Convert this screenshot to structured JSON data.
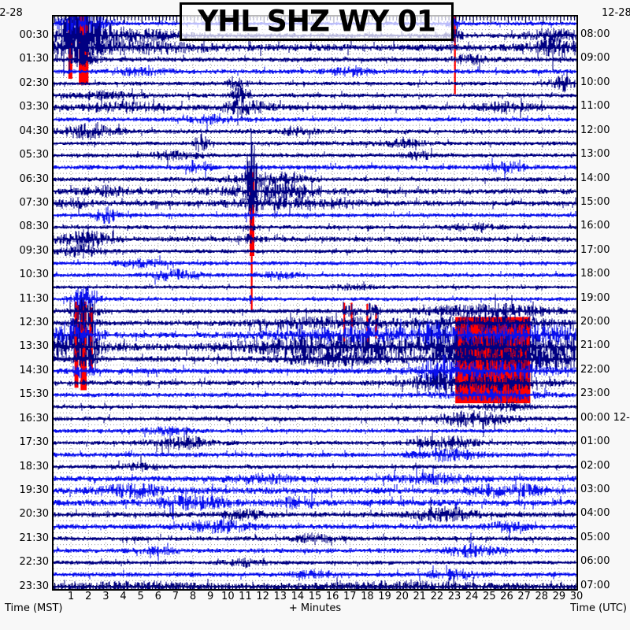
{
  "title": "YHL SHZ WY 01",
  "dates": {
    "top_left": "12-28",
    "top_right": "12-28"
  },
  "axes": {
    "left_label": "Time (MST)",
    "right_label": "Time (UTC)",
    "bottom_label": "+ Minutes",
    "left_ticks": [
      "00:30",
      "01:30",
      "02:30",
      "03:30",
      "04:30",
      "05:30",
      "06:30",
      "07:30",
      "08:30",
      "09:30",
      "10:30",
      "11:30",
      "12:30",
      "13:30",
      "14:30",
      "15:30",
      "16:30",
      "17:30",
      "18:30",
      "19:30",
      "20:30",
      "21:30",
      "22:30",
      "23:30"
    ],
    "right_ticks": [
      "08:00",
      "09:00",
      "10:00",
      "11:00",
      "12:00",
      "13:00",
      "14:00",
      "15:00",
      "16:00",
      "17:00",
      "18:00",
      "19:00",
      "20:00",
      "21:00",
      "22:00",
      "23:00",
      "00:00 12-29",
      "01:00",
      "02:00",
      "03:00",
      "04:00",
      "05:00",
      "06:00",
      "07:00"
    ],
    "minute_ticks": [
      "1",
      "2",
      "3",
      "4",
      "5",
      "6",
      "7",
      "8",
      "9",
      "10",
      "11",
      "12",
      "13",
      "14",
      "15",
      "16",
      "17",
      "18",
      "19",
      "20",
      "21",
      "22",
      "23",
      "24",
      "25",
      "26",
      "27",
      "28",
      "29",
      "30"
    ]
  },
  "colors": {
    "dark_trace": "#000082",
    "bright_trace": "#0a10ee",
    "clip": "#ff0000",
    "grid": "#9a9a9a",
    "comb": "#0a0a60",
    "frame": "#000000",
    "plot_bg": "#ffffff",
    "page_bg": "#f8f8f8"
  },
  "chart_data": {
    "type": "heatmap",
    "subtype": "helicorder-seismogram",
    "station": "YHL",
    "channel": "SHZ",
    "network_region": "WY",
    "minutes_per_line": 30,
    "lines": 48,
    "start_local_date": "12-28",
    "utc_rollover_label": "00:00 12-29",
    "grid": "dotted, 1-minute vertical lines and per-line horizontal lines",
    "rows": [
      {
        "t": "00:00",
        "c": "b",
        "a": 2.0,
        "ev": [
          [
            1.6,
            0.8,
            20
          ],
          [
            23,
            0.3,
            6
          ]
        ]
      },
      {
        "t": "00:30",
        "c": "d",
        "a": 2.5,
        "ev": [
          [
            1.5,
            0.9,
            26
          ],
          [
            3.5,
            2.5,
            9
          ],
          [
            23,
            0.3,
            8
          ],
          [
            28.8,
            1.2,
            7
          ]
        ]
      },
      {
        "t": "01:00",
        "c": "d",
        "a": 4.0,
        "ev": [
          [
            1.4,
            0.8,
            14
          ],
          [
            4,
            3,
            6
          ],
          [
            29,
            1,
            9
          ]
        ]
      },
      {
        "t": "01:30",
        "c": "d",
        "a": 2.5,
        "ev": [
          [
            1.8,
            0.5,
            7
          ],
          [
            24,
            0.8,
            5
          ]
        ]
      },
      {
        "t": "02:00",
        "c": "b",
        "a": 2.5,
        "ev": [
          [
            5,
            1,
            4
          ],
          [
            17,
            0.8,
            5
          ]
        ]
      },
      {
        "t": "02:30",
        "c": "d",
        "a": 2.0,
        "ev": [
          [
            10.5,
            0.4,
            7
          ],
          [
            29.3,
            0.5,
            9
          ]
        ]
      },
      {
        "t": "03:00",
        "c": "d",
        "a": 2.2,
        "ev": [
          [
            10.7,
            0.3,
            12
          ],
          [
            3,
            1.5,
            4
          ]
        ]
      },
      {
        "t": "03:30",
        "c": "d",
        "a": 3.0,
        "ev": [
          [
            4,
            1.5,
            5
          ],
          [
            11,
            1,
            7
          ],
          [
            26,
            1,
            5
          ]
        ]
      },
      {
        "t": "04:00",
        "c": "b",
        "a": 2.2,
        "ev": [
          [
            9,
            1,
            4
          ]
        ]
      },
      {
        "t": "04:30",
        "c": "d",
        "a": 2.5,
        "ev": [
          [
            2,
            1,
            8
          ],
          [
            14,
            0.6,
            5
          ]
        ]
      },
      {
        "t": "05:00",
        "c": "d",
        "a": 2.0,
        "ev": [
          [
            8.5,
            0.25,
            14
          ],
          [
            20,
            1,
            4
          ]
        ]
      },
      {
        "t": "05:30",
        "c": "d",
        "a": 2.0,
        "ev": [
          [
            7,
            1,
            5
          ],
          [
            21,
            0.5,
            5
          ]
        ]
      },
      {
        "t": "06:00",
        "c": "b",
        "a": 2.5,
        "ev": [
          [
            8.3,
            0.4,
            10
          ],
          [
            26,
            0.8,
            5
          ]
        ]
      },
      {
        "t": "06:30",
        "c": "d",
        "a": 2.2,
        "ev": [
          [
            11.35,
            0.18,
            55
          ],
          [
            12.3,
            1.5,
            8
          ]
        ]
      },
      {
        "t": "07:00",
        "c": "d",
        "a": 3.0,
        "ev": [
          [
            11.35,
            0.15,
            45
          ],
          [
            12.5,
            2,
            9
          ],
          [
            3,
            1,
            5
          ]
        ]
      },
      {
        "t": "07:30",
        "c": "d",
        "a": 3.0,
        "ev": [
          [
            11.4,
            0.2,
            14
          ],
          [
            13.5,
            2.5,
            6
          ],
          [
            1,
            0.8,
            5
          ]
        ]
      },
      {
        "t": "08:00",
        "c": "b",
        "a": 2.0,
        "ev": [
          [
            3,
            0.5,
            9
          ],
          [
            11.3,
            0.2,
            5
          ]
        ]
      },
      {
        "t": "08:30",
        "c": "d",
        "a": 2.0,
        "ev": [
          [
            11.3,
            0.15,
            5
          ],
          [
            24,
            1,
            4
          ]
        ]
      },
      {
        "t": "09:00",
        "c": "d",
        "a": 2.8,
        "ev": [
          [
            1.8,
            1,
            10
          ],
          [
            11,
            0.5,
            5
          ]
        ]
      },
      {
        "t": "09:30",
        "c": "d",
        "a": 2.0,
        "ev": [
          [
            1.5,
            0.8,
            7
          ]
        ]
      },
      {
        "t": "10:00",
        "c": "b",
        "a": 2.0,
        "ev": [
          [
            5,
            1,
            4
          ]
        ]
      },
      {
        "t": "10:30",
        "c": "b",
        "a": 2.0,
        "ev": [
          [
            7,
            1,
            6
          ],
          [
            13,
            0.5,
            5
          ]
        ]
      },
      {
        "t": "11:00",
        "c": "d",
        "a": 1.6,
        "ev": [
          [
            17,
            1,
            3
          ]
        ]
      },
      {
        "t": "11:30",
        "c": "b",
        "a": 2.0,
        "ev": [
          [
            1.8,
            0.5,
            16
          ],
          [
            11.3,
            0.1,
            6
          ]
        ]
      },
      {
        "t": "12:00",
        "c": "d",
        "a": 2.2,
        "ev": [
          [
            1.8,
            0.5,
            16
          ],
          [
            17,
            0.3,
            8
          ],
          [
            18.2,
            0.3,
            8
          ],
          [
            25,
            2.5,
            8
          ]
        ]
      },
      {
        "t": "12:30",
        "c": "d",
        "a": 2.6,
        "ev": [
          [
            1.8,
            0.5,
            12
          ],
          [
            16,
            3,
            6
          ],
          [
            25,
            2.5,
            9
          ]
        ]
      },
      {
        "t": "13:00",
        "c": "b",
        "a": 3.0,
        "ev": [
          [
            1.2,
            1,
            18
          ],
          [
            17,
            3,
            8
          ],
          [
            21.8,
            0.3,
            14
          ],
          [
            25,
            2.5,
            10
          ],
          [
            28.5,
            1.5,
            8
          ]
        ]
      },
      {
        "t": "13:30",
        "c": "d",
        "a": 4.0,
        "ev": [
          [
            1,
            1.2,
            16
          ],
          [
            17,
            4,
            12
          ],
          [
            25,
            2.5,
            12
          ],
          [
            29.7,
            0.4,
            16
          ]
        ]
      },
      {
        "t": "14:00",
        "c": "d",
        "a": 3.0,
        "ev": [
          [
            1.8,
            0.5,
            10
          ],
          [
            16,
            2,
            7
          ],
          [
            25,
            2.5,
            10
          ],
          [
            28.5,
            1.5,
            9
          ]
        ]
      },
      {
        "t": "14:30",
        "c": "b",
        "a": 3.0,
        "ev": [
          [
            1.7,
            0.4,
            8
          ],
          [
            22,
            0.5,
            18
          ],
          [
            25,
            2.5,
            9
          ]
        ]
      },
      {
        "t": "15:00",
        "c": "d",
        "a": 2.6,
        "ev": [
          [
            22,
            1,
            8
          ],
          [
            25,
            2.5,
            8
          ]
        ]
      },
      {
        "t": "15:30",
        "c": "b",
        "a": 2.4,
        "ev": [
          [
            25,
            2,
            6
          ]
        ]
      },
      {
        "t": "16:00",
        "c": "d",
        "a": 2.0,
        "ev": [
          [
            26,
            1,
            5
          ]
        ]
      },
      {
        "t": "16:30",
        "c": "d",
        "a": 2.4,
        "ev": [
          [
            24,
            1.5,
            8
          ]
        ]
      },
      {
        "t": "17:00",
        "c": "b",
        "a": 2.0,
        "ev": [
          [
            6.5,
            1,
            4
          ]
        ]
      },
      {
        "t": "17:30",
        "c": "d",
        "a": 2.0,
        "ev": [
          [
            7.5,
            1.2,
            7
          ],
          [
            22.5,
            1.2,
            8
          ]
        ]
      },
      {
        "t": "18:00",
        "c": "b",
        "a": 2.4,
        "ev": [
          [
            22.5,
            1.2,
            7
          ]
        ]
      },
      {
        "t": "18:30",
        "c": "d",
        "a": 2.0,
        "ev": [
          [
            5,
            0.8,
            4
          ]
        ]
      },
      {
        "t": "19:00",
        "c": "b",
        "a": 3.0,
        "ev": [
          [
            12,
            1.5,
            4
          ],
          [
            22,
            1.5,
            5
          ]
        ]
      },
      {
        "t": "19:30",
        "c": "b",
        "a": 3.6,
        "ev": [
          [
            4.5,
            1.2,
            7
          ],
          [
            26,
            1.5,
            7
          ]
        ]
      },
      {
        "t": "20:00",
        "c": "b",
        "a": 3.6,
        "ev": [
          [
            8,
            1.5,
            7
          ],
          [
            14,
            0.8,
            5
          ]
        ]
      },
      {
        "t": "20:30",
        "c": "d",
        "a": 2.8,
        "ev": [
          [
            11,
            0.8,
            5
          ],
          [
            22.5,
            1.2,
            9
          ]
        ]
      },
      {
        "t": "21:00",
        "c": "b",
        "a": 2.8,
        "ev": [
          [
            9.5,
            1.2,
            7
          ],
          [
            26,
            0.8,
            5
          ]
        ]
      },
      {
        "t": "21:30",
        "c": "d",
        "a": 2.4,
        "ev": [
          [
            15,
            0.8,
            5
          ]
        ]
      },
      {
        "t": "22:00",
        "c": "b",
        "a": 2.4,
        "ev": [
          [
            6,
            0.8,
            4
          ],
          [
            24,
            1,
            7
          ]
        ]
      },
      {
        "t": "22:30",
        "c": "d",
        "a": 2.0,
        "ev": [
          [
            11,
            0.8,
            4
          ]
        ]
      },
      {
        "t": "23:00",
        "c": "b",
        "a": 2.4,
        "ev": [
          [
            15,
            0.8,
            4
          ],
          [
            23,
            1,
            5
          ]
        ]
      },
      {
        "t": "23:30",
        "c": "d",
        "a": 3.5,
        "ev": [
          [
            5,
            2,
            4
          ],
          [
            20,
            3,
            4
          ]
        ]
      }
    ],
    "clip_marks": [
      {
        "m1": 0.85,
        "m2": 1.08,
        "r1": -0.6,
        "r2": 4.6
      },
      {
        "m1": 1.45,
        "m2": 2.0,
        "r1": -0.6,
        "r2": 5.1
      },
      {
        "m1": 22.98,
        "m2": 23.08,
        "r1": -0.6,
        "r2": 5.9
      },
      {
        "m1": 11.25,
        "m2": 11.52,
        "r1": 12.4,
        "r2": 19.4
      },
      {
        "m1": 11.32,
        "m2": 11.42,
        "r1": 19.4,
        "r2": 24.0
      },
      {
        "m1": 1.2,
        "m2": 1.42,
        "r1": 23.2,
        "r2": 30.4
      },
      {
        "m1": 1.55,
        "m2": 1.9,
        "r1": 23.2,
        "r2": 30.6
      },
      {
        "m1": 2.05,
        "m2": 2.25,
        "r1": 23.7,
        "r2": 29.0
      },
      {
        "m1": 16.63,
        "m2": 16.73,
        "r1": 23.3,
        "r2": 27.0
      },
      {
        "m1": 17.05,
        "m2": 17.15,
        "r1": 23.3,
        "r2": 26.6
      },
      {
        "m1": 17.95,
        "m2": 18.05,
        "r1": 23.4,
        "r2": 26.8
      },
      {
        "m1": 18.45,
        "m2": 18.55,
        "r1": 23.5,
        "r2": 26.3
      },
      {
        "m1": 23.05,
        "m2": 27.35,
        "r1": 24.5,
        "r2": 31.7
      }
    ]
  }
}
